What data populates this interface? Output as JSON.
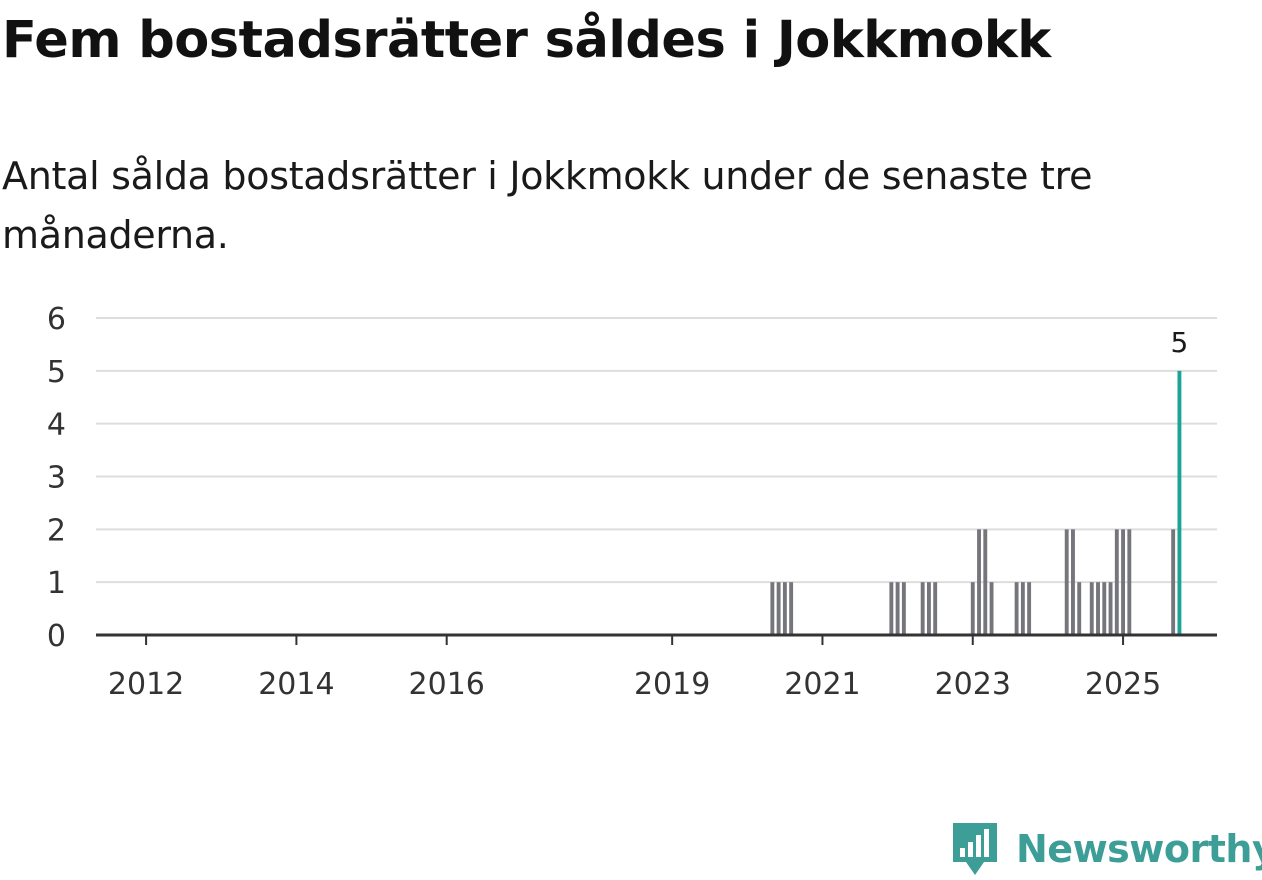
{
  "title": "Fem bostadsrätter såldes i Jokkmokk",
  "subtitle": "Antal sålda bostadsrätter i Jokkmokk under de senaste tre månaderna.",
  "brand": {
    "name": "Newsworthy",
    "color": "#3c9e96"
  },
  "chart_data": {
    "type": "bar",
    "title": "Fem bostadsrätter såldes i Jokkmokk",
    "subtitle": "Antal sålda bostadsrätter i Jokkmokk under de senaste tre månaderna.",
    "xlabel": "",
    "ylabel": "",
    "x_axis": "time",
    "xlim": [
      "2011-05",
      "2026-04"
    ],
    "xticks": [
      "2012",
      "2014",
      "2016",
      "2019",
      "2021",
      "2023",
      "2025"
    ],
    "ylim": [
      0,
      6
    ],
    "yticks": [
      0,
      1,
      2,
      3,
      4,
      5,
      6
    ],
    "grid": true,
    "legend": false,
    "bar_color": "#75757c",
    "highlight_color": "#1ba496",
    "axis_color": "#333333",
    "grid_color": "#dddddd",
    "highlight_label": "5",
    "bars": [
      {
        "x": "2020-05",
        "value": 1
      },
      {
        "x": "2020-06",
        "value": 1
      },
      {
        "x": "2020-07",
        "value": 1
      },
      {
        "x": "2020-08",
        "value": 1
      },
      {
        "x": "2021-12",
        "value": 1
      },
      {
        "x": "2022-01",
        "value": 1
      },
      {
        "x": "2022-02",
        "value": 1
      },
      {
        "x": "2022-05",
        "value": 1
      },
      {
        "x": "2022-06",
        "value": 1
      },
      {
        "x": "2022-07",
        "value": 1
      },
      {
        "x": "2023-01",
        "value": 1
      },
      {
        "x": "2023-02",
        "value": 2
      },
      {
        "x": "2023-03",
        "value": 2
      },
      {
        "x": "2023-04",
        "value": 1
      },
      {
        "x": "2023-08",
        "value": 1
      },
      {
        "x": "2023-09",
        "value": 1
      },
      {
        "x": "2023-10",
        "value": 1
      },
      {
        "x": "2024-04",
        "value": 2
      },
      {
        "x": "2024-05",
        "value": 2
      },
      {
        "x": "2024-06",
        "value": 1
      },
      {
        "x": "2024-08",
        "value": 1
      },
      {
        "x": "2024-09",
        "value": 1
      },
      {
        "x": "2024-10",
        "value": 1
      },
      {
        "x": "2024-11",
        "value": 1
      },
      {
        "x": "2024-12",
        "value": 2
      },
      {
        "x": "2025-01",
        "value": 2
      },
      {
        "x": "2025-02",
        "value": 2
      },
      {
        "x": "2025-09",
        "value": 2
      },
      {
        "x": "2025-10",
        "value": 5,
        "highlight": true
      }
    ]
  }
}
